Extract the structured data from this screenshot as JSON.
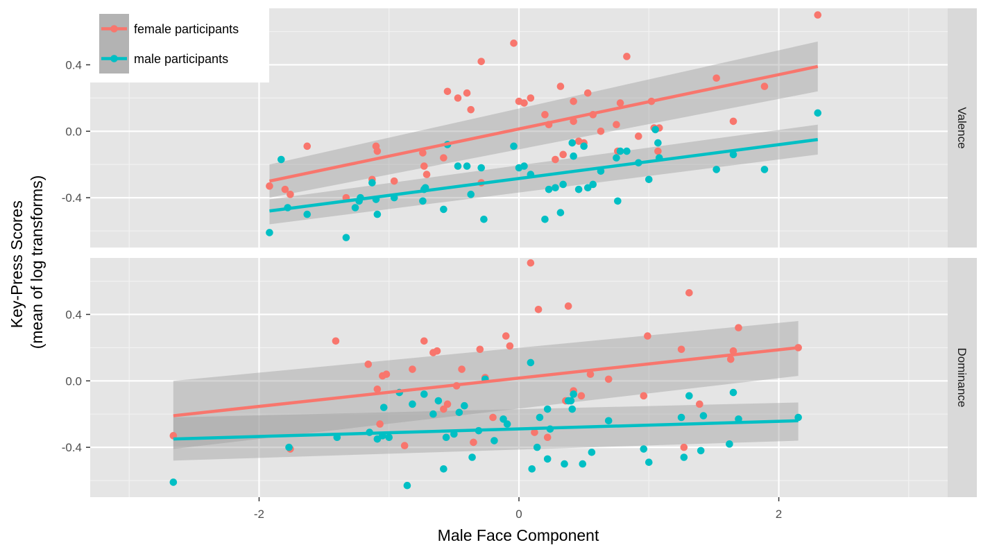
{
  "chart_data": {
    "type": "scatter",
    "xlabel": "Male Face Component",
    "ylabel": [
      "Key-Press Scores",
      "(mean of log transforms)"
    ],
    "x_ticks": [
      -2,
      0,
      2
    ],
    "x_tick_labels": [
      "-2",
      "0",
      "2"
    ],
    "y_ticks": [
      -0.4,
      0.0,
      0.4
    ],
    "y_tick_labels": [
      "-0.4",
      "0.0",
      "0.4"
    ],
    "xlim": [
      -3.3,
      3.3
    ],
    "ylim": [
      -0.7,
      0.74
    ],
    "grid": true,
    "legend_position": "top-left",
    "series_meta": [
      {
        "name": "female participants",
        "color": "#F8766D"
      },
      {
        "name": "male participants",
        "color": "#00BFC4"
      }
    ],
    "panels": [
      {
        "strip": "Valence",
        "series": [
          {
            "name": "female participants",
            "color": "#F8766D",
            "trend": {
              "x": [
                -1.92,
                2.3
              ],
              "y": [
                -0.3,
                0.39
              ]
            },
            "band": {
              "x0": -1.92,
              "x1": 2.3,
              "lower0": -0.4,
              "upper0": -0.2,
              "lower1": 0.24,
              "upper1": 0.54
            },
            "points": [
              [
                -1.92,
                -0.33
              ],
              [
                -1.8,
                -0.35
              ],
              [
                -1.76,
                -0.38
              ],
              [
                -1.63,
                -0.09
              ],
              [
                -1.33,
                -0.4
              ],
              [
                -1.13,
                -0.29
              ],
              [
                -1.1,
                -0.09
              ],
              [
                -1.09,
                -0.12
              ],
              [
                -0.96,
                -0.3
              ],
              [
                -0.74,
                -0.13
              ],
              [
                -0.73,
                -0.21
              ],
              [
                -0.71,
                -0.26
              ],
              [
                -0.58,
                -0.16
              ],
              [
                -0.55,
                0.24
              ],
              [
                -0.47,
                0.2
              ],
              [
                -0.4,
                0.23
              ],
              [
                -0.37,
                0.13
              ],
              [
                -0.29,
                0.42
              ],
              [
                -0.29,
                -0.31
              ],
              [
                -0.04,
                0.53
              ],
              [
                0.0,
                0.18
              ],
              [
                0.04,
                0.17
              ],
              [
                0.09,
                0.2
              ],
              [
                0.2,
                0.1
              ],
              [
                0.23,
                0.04
              ],
              [
                0.28,
                -0.17
              ],
              [
                0.32,
                0.27
              ],
              [
                0.34,
                -0.14
              ],
              [
                0.42,
                0.18
              ],
              [
                0.42,
                0.06
              ],
              [
                0.46,
                -0.06
              ],
              [
                0.5,
                -0.07
              ],
              [
                0.53,
                0.23
              ],
              [
                0.57,
                0.1
              ],
              [
                0.63,
                0.0
              ],
              [
                0.75,
                0.04
              ],
              [
                0.76,
                -0.12
              ],
              [
                0.78,
                0.17
              ],
              [
                0.83,
                0.45
              ],
              [
                0.92,
                -0.03
              ],
              [
                1.02,
                0.18
              ],
              [
                1.04,
                0.02
              ],
              [
                1.07,
                -0.12
              ],
              [
                1.08,
                0.02
              ],
              [
                1.52,
                0.32
              ],
              [
                1.65,
                0.06
              ],
              [
                1.89,
                0.27
              ],
              [
                2.3,
                0.7
              ]
            ]
          },
          {
            "name": "male participants",
            "color": "#00BFC4",
            "trend": {
              "x": [
                -1.92,
                2.3
              ],
              "y": [
                -0.48,
                -0.05
              ]
            },
            "band": {
              "x0": -1.92,
              "x1": 2.3,
              "lower0": -0.56,
              "upper0": -0.41,
              "lower1": -0.14,
              "upper1": 0.04
            },
            "points": [
              [
                -1.92,
                -0.61
              ],
              [
                -1.83,
                -0.17
              ],
              [
                -1.78,
                -0.46
              ],
              [
                -1.63,
                -0.5
              ],
              [
                -1.33,
                -0.64
              ],
              [
                -1.26,
                -0.46
              ],
              [
                -1.23,
                -0.42
              ],
              [
                -1.22,
                -0.4
              ],
              [
                -1.13,
                -0.31
              ],
              [
                -1.1,
                -0.41
              ],
              [
                -1.09,
                -0.5
              ],
              [
                -0.96,
                -0.4
              ],
              [
                -0.74,
                -0.42
              ],
              [
                -0.73,
                -0.35
              ],
              [
                -0.72,
                -0.34
              ],
              [
                -0.58,
                -0.47
              ],
              [
                -0.55,
                -0.08
              ],
              [
                -0.47,
                -0.21
              ],
              [
                -0.4,
                -0.21
              ],
              [
                -0.37,
                -0.38
              ],
              [
                -0.29,
                -0.22
              ],
              [
                -0.27,
                -0.53
              ],
              [
                -0.04,
                -0.09
              ],
              [
                0.0,
                -0.22
              ],
              [
                0.04,
                -0.21
              ],
              [
                0.09,
                -0.26
              ],
              [
                0.2,
                -0.53
              ],
              [
                0.23,
                -0.35
              ],
              [
                0.28,
                -0.34
              ],
              [
                0.32,
                -0.49
              ],
              [
                0.34,
                -0.32
              ],
              [
                0.41,
                -0.07
              ],
              [
                0.42,
                -0.15
              ],
              [
                0.46,
                -0.35
              ],
              [
                0.5,
                -0.09
              ],
              [
                0.53,
                -0.34
              ],
              [
                0.57,
                -0.32
              ],
              [
                0.63,
                -0.24
              ],
              [
                0.75,
                -0.16
              ],
              [
                0.76,
                -0.42
              ],
              [
                0.78,
                -0.12
              ],
              [
                0.83,
                -0.12
              ],
              [
                0.92,
                -0.19
              ],
              [
                1.0,
                -0.29
              ],
              [
                1.05,
                0.01
              ],
              [
                1.07,
                -0.07
              ],
              [
                1.08,
                -0.16
              ],
              [
                1.52,
                -0.23
              ],
              [
                1.65,
                -0.14
              ],
              [
                1.89,
                -0.23
              ],
              [
                2.3,
                0.11
              ]
            ]
          }
        ]
      },
      {
        "strip": "Dominance",
        "series": [
          {
            "name": "female participants",
            "color": "#F8766D",
            "trend": {
              "x": [
                -2.66,
                2.15
              ],
              "y": [
                -0.21,
                0.2
              ]
            },
            "band": {
              "x0": -2.66,
              "x1": 2.15,
              "lower0": -0.41,
              "upper0": 0.0,
              "lower1": 0.03,
              "upper1": 0.36
            },
            "points": [
              [
                -2.66,
                -0.33
              ],
              [
                -1.76,
                -0.41
              ],
              [
                -1.41,
                0.24
              ],
              [
                -1.16,
                0.1
              ],
              [
                -1.09,
                -0.05
              ],
              [
                -1.05,
                0.03
              ],
              [
                -1.07,
                -0.26
              ],
              [
                -1.02,
                0.04
              ],
              [
                -0.88,
                -0.39
              ],
              [
                -0.82,
                0.07
              ],
              [
                -0.73,
                0.24
              ],
              [
                -0.66,
                0.17
              ],
              [
                -0.63,
                0.18
              ],
              [
                -0.58,
                -0.17
              ],
              [
                -0.55,
                -0.14
              ],
              [
                -0.48,
                -0.03
              ],
              [
                -0.44,
                0.07
              ],
              [
                -0.35,
                -0.37
              ],
              [
                -0.3,
                0.19
              ],
              [
                -0.26,
                0.02
              ],
              [
                -0.1,
                0.27
              ],
              [
                -0.07,
                0.21
              ],
              [
                -0.2,
                -0.22
              ],
              [
                0.09,
                0.71
              ],
              [
                0.12,
                -0.31
              ],
              [
                0.15,
                0.43
              ],
              [
                0.22,
                -0.34
              ],
              [
                0.36,
                -0.12
              ],
              [
                0.38,
                0.45
              ],
              [
                0.42,
                -0.06
              ],
              [
                0.48,
                -0.09
              ],
              [
                0.55,
                0.04
              ],
              [
                0.69,
                0.01
              ],
              [
                0.96,
                -0.09
              ],
              [
                0.99,
                0.27
              ],
              [
                1.25,
                0.19
              ],
              [
                1.27,
                -0.4
              ],
              [
                1.31,
                0.53
              ],
              [
                1.39,
                -0.14
              ],
              [
                1.63,
                0.13
              ],
              [
                1.65,
                0.18
              ],
              [
                1.69,
                0.32
              ],
              [
                2.15,
                0.2
              ]
            ]
          },
          {
            "name": "male participants",
            "color": "#00BFC4",
            "trend": {
              "x": [
                -2.66,
                2.15
              ],
              "y": [
                -0.35,
                -0.24
              ]
            },
            "band": {
              "x0": -2.66,
              "x1": 2.15,
              "lower0": -0.48,
              "upper0": -0.22,
              "lower1": -0.36,
              "upper1": -0.13
            },
            "points": [
              [
                -2.66,
                -0.61
              ],
              [
                -1.77,
                -0.4
              ],
              [
                -1.4,
                -0.34
              ],
              [
                -1.15,
                -0.31
              ],
              [
                -1.09,
                -0.35
              ],
              [
                -1.05,
                -0.33
              ],
              [
                -1.04,
                -0.16
              ],
              [
                -1.0,
                -0.34
              ],
              [
                -0.86,
                -0.63
              ],
              [
                -0.92,
                -0.07
              ],
              [
                -0.82,
                -0.14
              ],
              [
                -0.73,
                -0.08
              ],
              [
                -0.66,
                -0.2
              ],
              [
                -0.62,
                -0.12
              ],
              [
                -0.58,
                -0.53
              ],
              [
                -0.56,
                -0.34
              ],
              [
                -0.5,
                -0.32
              ],
              [
                -0.46,
                -0.19
              ],
              [
                -0.42,
                -0.15
              ],
              [
                -0.36,
                -0.46
              ],
              [
                -0.31,
                -0.3
              ],
              [
                -0.26,
                0.01
              ],
              [
                -0.19,
                -0.36
              ],
              [
                -0.12,
                -0.23
              ],
              [
                -0.09,
                -0.26
              ],
              [
                0.09,
                0.11
              ],
              [
                0.1,
                -0.53
              ],
              [
                0.14,
                -0.4
              ],
              [
                0.16,
                -0.22
              ],
              [
                0.22,
                -0.17
              ],
              [
                0.22,
                -0.47
              ],
              [
                0.24,
                -0.29
              ],
              [
                0.35,
                -0.5
              ],
              [
                0.38,
                -0.12
              ],
              [
                0.4,
                -0.12
              ],
              [
                0.42,
                -0.08
              ],
              [
                0.41,
                -0.17
              ],
              [
                0.49,
                -0.5
              ],
              [
                0.56,
                -0.43
              ],
              [
                0.69,
                -0.24
              ],
              [
                0.96,
                -0.41
              ],
              [
                1.0,
                -0.49
              ],
              [
                1.25,
                -0.22
              ],
              [
                1.27,
                -0.46
              ],
              [
                1.31,
                -0.09
              ],
              [
                1.4,
                -0.42
              ],
              [
                1.42,
                -0.21
              ],
              [
                1.62,
                -0.38
              ],
              [
                1.65,
                -0.07
              ],
              [
                1.69,
                -0.23
              ],
              [
                2.15,
                -0.22
              ]
            ]
          }
        ]
      }
    ]
  }
}
